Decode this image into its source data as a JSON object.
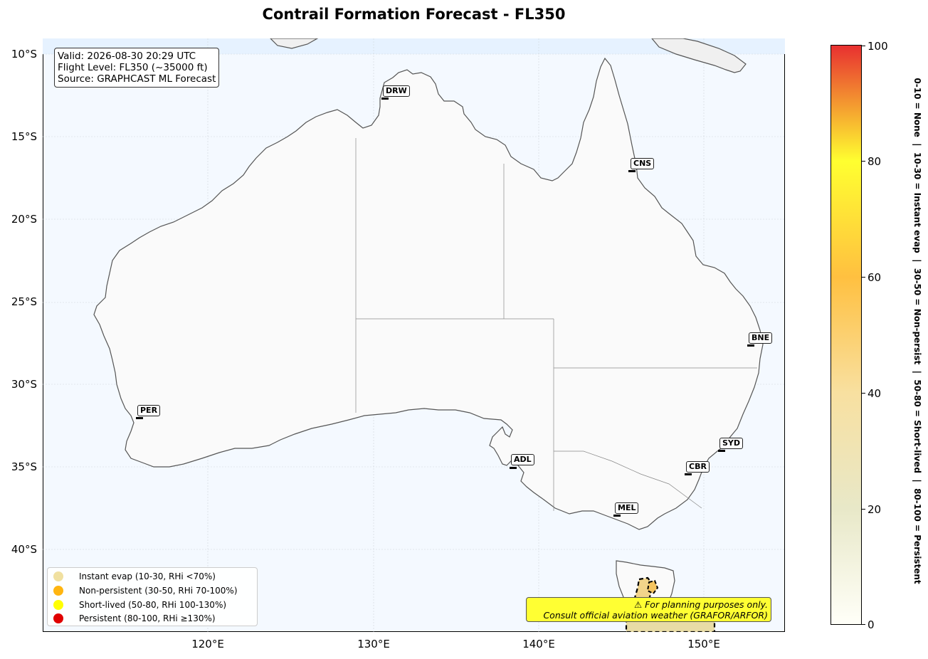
{
  "title": "Contrail Formation Forecast - FL350",
  "info_box": {
    "valid": "Valid: 2026-08-30 20:29 UTC",
    "flight_level": "Flight Level: FL350 (~35000 ft)",
    "source": "Source: GRAPHCAST ML Forecast"
  },
  "map": {
    "lat_labels": [
      "10°S",
      "15°S",
      "20°S",
      "25°S",
      "30°S",
      "35°S",
      "40°S"
    ],
    "lon_labels": [
      "120°E",
      "130°E",
      "140°E",
      "150°E"
    ],
    "ocean_color": "#f4f9ff",
    "land_color": "#fafafa",
    "coast_color": "#555555",
    "cities": [
      {
        "code": "DRW"
      },
      {
        "code": "CNS"
      },
      {
        "code": "BNE"
      },
      {
        "code": "PER"
      },
      {
        "code": "SYD"
      },
      {
        "code": "ADL"
      },
      {
        "code": "CBR"
      },
      {
        "code": "MEL"
      }
    ]
  },
  "legend": [
    {
      "label": "Instant evap (10-30, RHi <70%)",
      "color": "#f0e0a0"
    },
    {
      "label": "Non-persistent (30-50, RHi 70-100%)",
      "color": "#ffb510"
    },
    {
      "label": "Short-lived (50-80, RHi 100-130%)",
      "color": "#ffff00"
    },
    {
      "label": "Persistent (80-100, RHi ≥130%)",
      "color": "#e00000"
    }
  ],
  "disclaimer": {
    "line1": "⚠ For planning purposes only.",
    "line2": "Consult official aviation weather (GRAFOR/ARFOR)"
  },
  "colorbar": {
    "ticks": [
      "0",
      "20",
      "40",
      "60",
      "80",
      "100"
    ],
    "side_label": "0-10 = None  |  10-30 = Instant evap  |  30-50 = Non-persist  |  50-80 = Short-lived  |  80-100 = Persistent",
    "colors": [
      "#fffff8",
      "#e8e8c8",
      "#f8e0a0",
      "#ffc040",
      "#ffff30",
      "#e83030"
    ]
  }
}
